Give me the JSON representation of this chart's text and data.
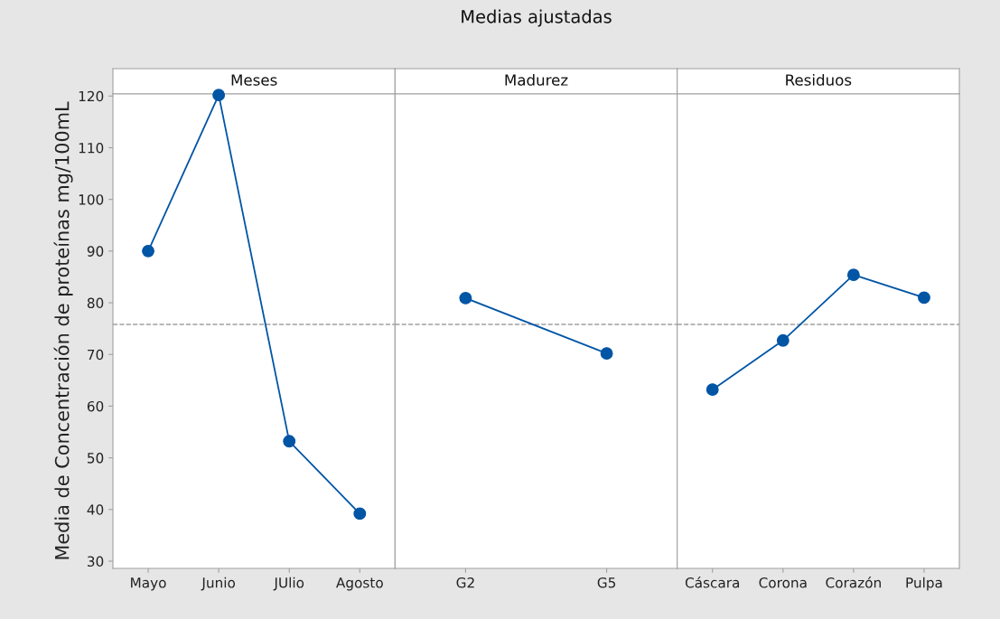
{
  "chart_data": [
    {
      "type": "line",
      "subtitle": "Meses",
      "ylabel": "Media de Concentración de proteínas mg/100mL",
      "categories": [
        "Mayo",
        "Junio",
        "JUlio",
        "Agosto"
      ],
      "series": [
        {
          "color": "#0055a5",
          "values": [
            90.0,
            120.2,
            53.2,
            39.2
          ]
        }
      ],
      "ylim": [
        28.6,
        120.4
      ],
      "yticks": [
        30,
        40,
        50,
        60,
        70,
        80,
        90,
        100,
        110,
        120
      ],
      "ref_lines": [
        {
          "axis": "y",
          "value": 75.8,
          "color": "#a0a0a0",
          "line_style": "dashed"
        }
      ],
      "marker": "circle",
      "line_style": "solid",
      "grid": false,
      "legend": false
    },
    {
      "type": "line",
      "title": "Medias ajustadas",
      "subtitle": "Madurez",
      "categories": [
        "G2",
        "G5"
      ],
      "series": [
        {
          "color": "#0055a5",
          "values": [
            80.9,
            70.2
          ]
        }
      ],
      "ylim": [
        28.6,
        120.4
      ],
      "tick_labels": "x",
      "ref_lines": [
        {
          "axis": "y",
          "value": 75.8,
          "color": "#a0a0a0",
          "line_style": "dashed"
        }
      ],
      "marker": "circle",
      "line_style": "solid",
      "grid": false,
      "legend": false
    },
    {
      "type": "line",
      "subtitle": "Residuos",
      "categories": [
        "Cáscara",
        "Corona",
        "Corazón",
        "Pulpa"
      ],
      "series": [
        {
          "color": "#0055a5",
          "values": [
            63.2,
            72.7,
            85.4,
            81.0
          ]
        }
      ],
      "ylim": [
        28.6,
        120.4
      ],
      "tick_labels": "x",
      "ref_lines": [
        {
          "axis": "y",
          "value": 75.8,
          "color": "#a0a0a0",
          "line_style": "dashed"
        }
      ],
      "marker": "circle",
      "line_style": "solid",
      "grid": false,
      "legend": false
    }
  ]
}
